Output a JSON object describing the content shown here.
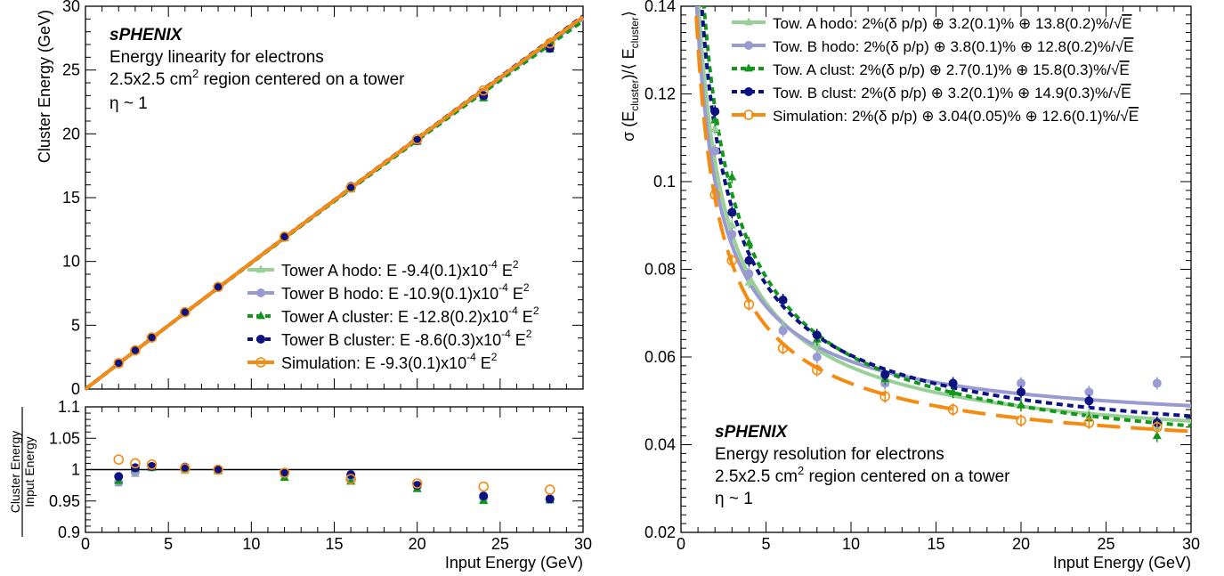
{
  "colors": {
    "towA_hodo": "#98d098",
    "towB_hodo": "#9a9ad2",
    "towA_clust": "#12961e",
    "towB_clust": "#0c1282",
    "sim": "#f48c14",
    "axis": "#000000"
  },
  "chart_data": [
    {
      "id": "linearity",
      "type": "scatter",
      "ylabel": "Cluster Energy (GeV)",
      "xlim": [
        0,
        30
      ],
      "ylim": [
        0,
        30
      ],
      "xticks": [
        "0",
        "5",
        "10",
        "15",
        "20",
        "25",
        "30"
      ],
      "yticks": [
        "0",
        "5",
        "10",
        "15",
        "20",
        "25",
        "30"
      ],
      "annotation": {
        "title": "sPHENIX",
        "line1": "Energy linearity for electrons",
        "line2a": "2.5x2.5 cm",
        "line2sup": "2",
        "line2b": " region centered on a tower",
        "line3": "η ~ 1"
      },
      "series": [
        {
          "key": "towA_hodo",
          "label": "Tower A hodo: E -9.4(0.1)x10",
          "sup": "-4",
          "tail": " E",
          "sup2": "2",
          "marker": "triangle",
          "line": "solid",
          "quad": -0.00094,
          "x": [
            2,
            3,
            4,
            6,
            8,
            12,
            16,
            20,
            24,
            28
          ],
          "y": [
            1.96,
            2.98,
            4.01,
            5.99,
            7.98,
            11.86,
            15.71,
            19.42,
            22.85,
            26.65
          ]
        },
        {
          "key": "towB_hodo",
          "label": "Tower B hodo: E -10.9(0.1)x10",
          "sup": "-4",
          "tail": " E",
          "sup2": "2",
          "marker": "circle",
          "line": "solid",
          "quad": -0.00109,
          "x": [
            2,
            3,
            4,
            6,
            8,
            12,
            16,
            20,
            24,
            28
          ],
          "y": [
            1.97,
            2.99,
            4.02,
            6.01,
            7.99,
            11.9,
            15.75,
            19.45,
            22.9,
            26.7
          ]
        },
        {
          "key": "towA_clust",
          "label": "Tower A cluster: E -12.8(0.2)x10",
          "sup": "-4",
          "tail": " E",
          "sup2": "2",
          "marker": "triangle",
          "line": "dashed",
          "quad": -0.00128,
          "x": [
            2,
            3,
            4,
            6,
            8,
            12,
            16,
            20,
            24,
            28
          ],
          "y": [
            1.96,
            3.0,
            4.01,
            6.0,
            7.98,
            11.84,
            15.68,
            19.38,
            22.78,
            26.62
          ]
        },
        {
          "key": "towB_clust",
          "label": "Tower B cluster: E -8.6(0.3)x10",
          "sup": "-4",
          "tail": " E",
          "sup2": "2",
          "marker": "circle",
          "line": "dashed",
          "quad": -0.00086,
          "x": [
            2,
            3,
            4,
            6,
            8,
            12,
            16,
            20,
            24,
            28
          ],
          "y": [
            1.98,
            3.01,
            4.02,
            6.02,
            8.0,
            11.92,
            15.88,
            19.48,
            23.0,
            26.7
          ]
        },
        {
          "key": "sim",
          "label": "Simulation: E -9.3(0.1)x10",
          "sup": "-4",
          "tail": " E",
          "sup2": "2",
          "marker": "open-circle",
          "line": "solid",
          "quad": -0.00093,
          "x": [
            2,
            3,
            4,
            6,
            8,
            12,
            16,
            20,
            24,
            28
          ],
          "y": [
            2.03,
            3.03,
            4.04,
            6.02,
            8.0,
            11.94,
            15.78,
            19.58,
            23.4,
            27.1
          ]
        }
      ]
    },
    {
      "id": "ratio",
      "type": "scatter",
      "xlabel": "Input Energy (GeV)",
      "ylabel_top": "Cluster Energy",
      "ylabel_bottom": "Input Energy",
      "xlim": [
        0,
        30
      ],
      "ylim": [
        0.9,
        1.1
      ],
      "xticks": [
        "0",
        "5",
        "10",
        "15",
        "20",
        "25",
        "30"
      ],
      "yticks": [
        "0.9",
        "0.95",
        "1",
        "1.05",
        "1.1"
      ],
      "reference_line": 1.0,
      "series": [
        {
          "key": "towA_hodo",
          "marker": "triangle",
          "x": [
            2,
            3,
            4,
            6,
            8,
            12,
            16,
            20,
            24,
            28
          ],
          "y": [
            0.978,
            0.993,
            1.002,
            0.998,
            0.997,
            0.988,
            0.982,
            0.97,
            0.952,
            0.952
          ]
        },
        {
          "key": "towB_hodo",
          "marker": "circle",
          "x": [
            2,
            3,
            4,
            6,
            8,
            12,
            16,
            20,
            24,
            28
          ],
          "y": [
            0.98,
            0.996,
            1.005,
            1.002,
            0.999,
            0.992,
            0.985,
            0.973,
            0.955,
            0.954
          ]
        },
        {
          "key": "towA_clust",
          "marker": "triangle",
          "x": [
            2,
            3,
            4,
            6,
            8,
            12,
            16,
            20,
            24,
            28
          ],
          "y": [
            0.982,
            1.001,
            1.003,
            1.001,
            0.998,
            0.987,
            0.981,
            0.969,
            0.95,
            0.951
          ]
        },
        {
          "key": "towB_clust",
          "marker": "circle",
          "x": [
            2,
            3,
            4,
            6,
            8,
            12,
            16,
            20,
            24,
            28
          ],
          "y": [
            0.989,
            1.003,
            1.005,
            1.004,
            1.0,
            0.994,
            0.992,
            0.975,
            0.958,
            0.953
          ]
        },
        {
          "key": "sim",
          "marker": "open-circle",
          "x": [
            2,
            3,
            4,
            6,
            8,
            12,
            16,
            20,
            24,
            28
          ],
          "y": [
            1.016,
            1.01,
            1.008,
            1.002,
            1.0,
            0.995,
            0.985,
            0.978,
            0.973,
            0.968
          ]
        }
      ]
    },
    {
      "id": "resolution",
      "type": "scatter",
      "xlabel": "Input Energy (GeV)",
      "ylabel": "σ (E_cluster)/⟨ E_cluster ⟩",
      "ylabel_parts": {
        "a": "σ (E",
        "sub1": "cluster",
        "b": ")/⟨ E",
        "sub2": "cluster",
        "c": "⟩"
      },
      "xlim": [
        0,
        30
      ],
      "ylim": [
        0.02,
        0.14
      ],
      "xticks": [
        "0",
        "5",
        "10",
        "15",
        "20",
        "25",
        "30"
      ],
      "yticks": [
        "0.02",
        "0.04",
        "0.06",
        "0.08",
        "0.1",
        "0.12",
        "0.14"
      ],
      "annotation": {
        "title": "sPHENIX",
        "line1": "Energy resolution for electrons",
        "line2a": "2.5x2.5 cm",
        "line2sup": "2",
        "line2b": " region centered on a tower",
        "line3": "η ~ 1"
      },
      "series": [
        {
          "key": "towA_hodo",
          "label": "Tow. A hodo: 2%(δ p/p) ⊕ 3.2(0.1)% ⊕ 13.8(0.2)%/",
          "sqrt": "E",
          "marker": "triangle",
          "line": "solid",
          "fit": [
            0.032,
            0.138
          ],
          "x": [
            2,
            3,
            4,
            6,
            8,
            12,
            16,
            20,
            24,
            28
          ],
          "y": [
            0.112,
            0.09,
            0.077,
            0.067,
            0.063,
            0.054,
            0.052,
            0.049,
            0.047,
            0.044
          ]
        },
        {
          "key": "towB_hodo",
          "label": "Tow. B hodo: 2%(δ p/p) ⊕ 3.8(0.1)% ⊕ 12.8(0.2)%/",
          "sqrt": "E",
          "marker": "circle",
          "line": "solid",
          "fit": [
            0.038,
            0.128
          ],
          "x": [
            2,
            3,
            4,
            6,
            8,
            12,
            16,
            20,
            24,
            28
          ],
          "y": [
            0.107,
            0.088,
            0.079,
            0.066,
            0.06,
            0.054,
            0.054,
            0.054,
            0.052,
            0.054
          ]
        },
        {
          "key": "towA_clust",
          "label": "Tow. A clust: 2%(δ p/p) ⊕ 2.7(0.1)% ⊕ 15.8(0.3)%/",
          "sqrt": "E",
          "marker": "triangle",
          "line": "dashed",
          "fit": [
            0.027,
            0.158
          ],
          "x": [
            2,
            3,
            4,
            6,
            8,
            12,
            16,
            20,
            24,
            28
          ],
          "y": [
            0.114,
            0.101,
            0.086,
            0.073,
            0.064,
            0.055,
            0.052,
            0.049,
            0.046,
            0.042
          ]
        },
        {
          "key": "towB_clust",
          "label": "Tow. B clust: 2%(δ p/p) ⊕ 3.2(0.1)% ⊕ 14.9(0.3)%/",
          "sqrt": "E",
          "marker": "circle",
          "line": "dashed",
          "fit": [
            0.032,
            0.149
          ],
          "x": [
            2,
            3,
            4,
            6,
            8,
            12,
            16,
            20,
            24,
            28
          ],
          "y": [
            0.116,
            0.093,
            0.082,
            0.073,
            0.065,
            0.056,
            0.054,
            0.052,
            0.05,
            0.045
          ]
        },
        {
          "key": "sim",
          "label": "Simulation: 2%(δ p/p) ⊕ 3.04(0.05)% ⊕ 12.6(0.1)%/",
          "sqrt": "E",
          "marker": "open-circle",
          "line": "longdash",
          "fit": [
            0.0304,
            0.126
          ],
          "x": [
            2,
            3,
            4,
            6,
            8,
            12,
            16,
            20,
            24,
            28
          ],
          "y": [
            0.097,
            0.082,
            0.072,
            0.062,
            0.057,
            0.051,
            0.048,
            0.0455,
            0.045,
            0.044
          ]
        }
      ]
    }
  ]
}
